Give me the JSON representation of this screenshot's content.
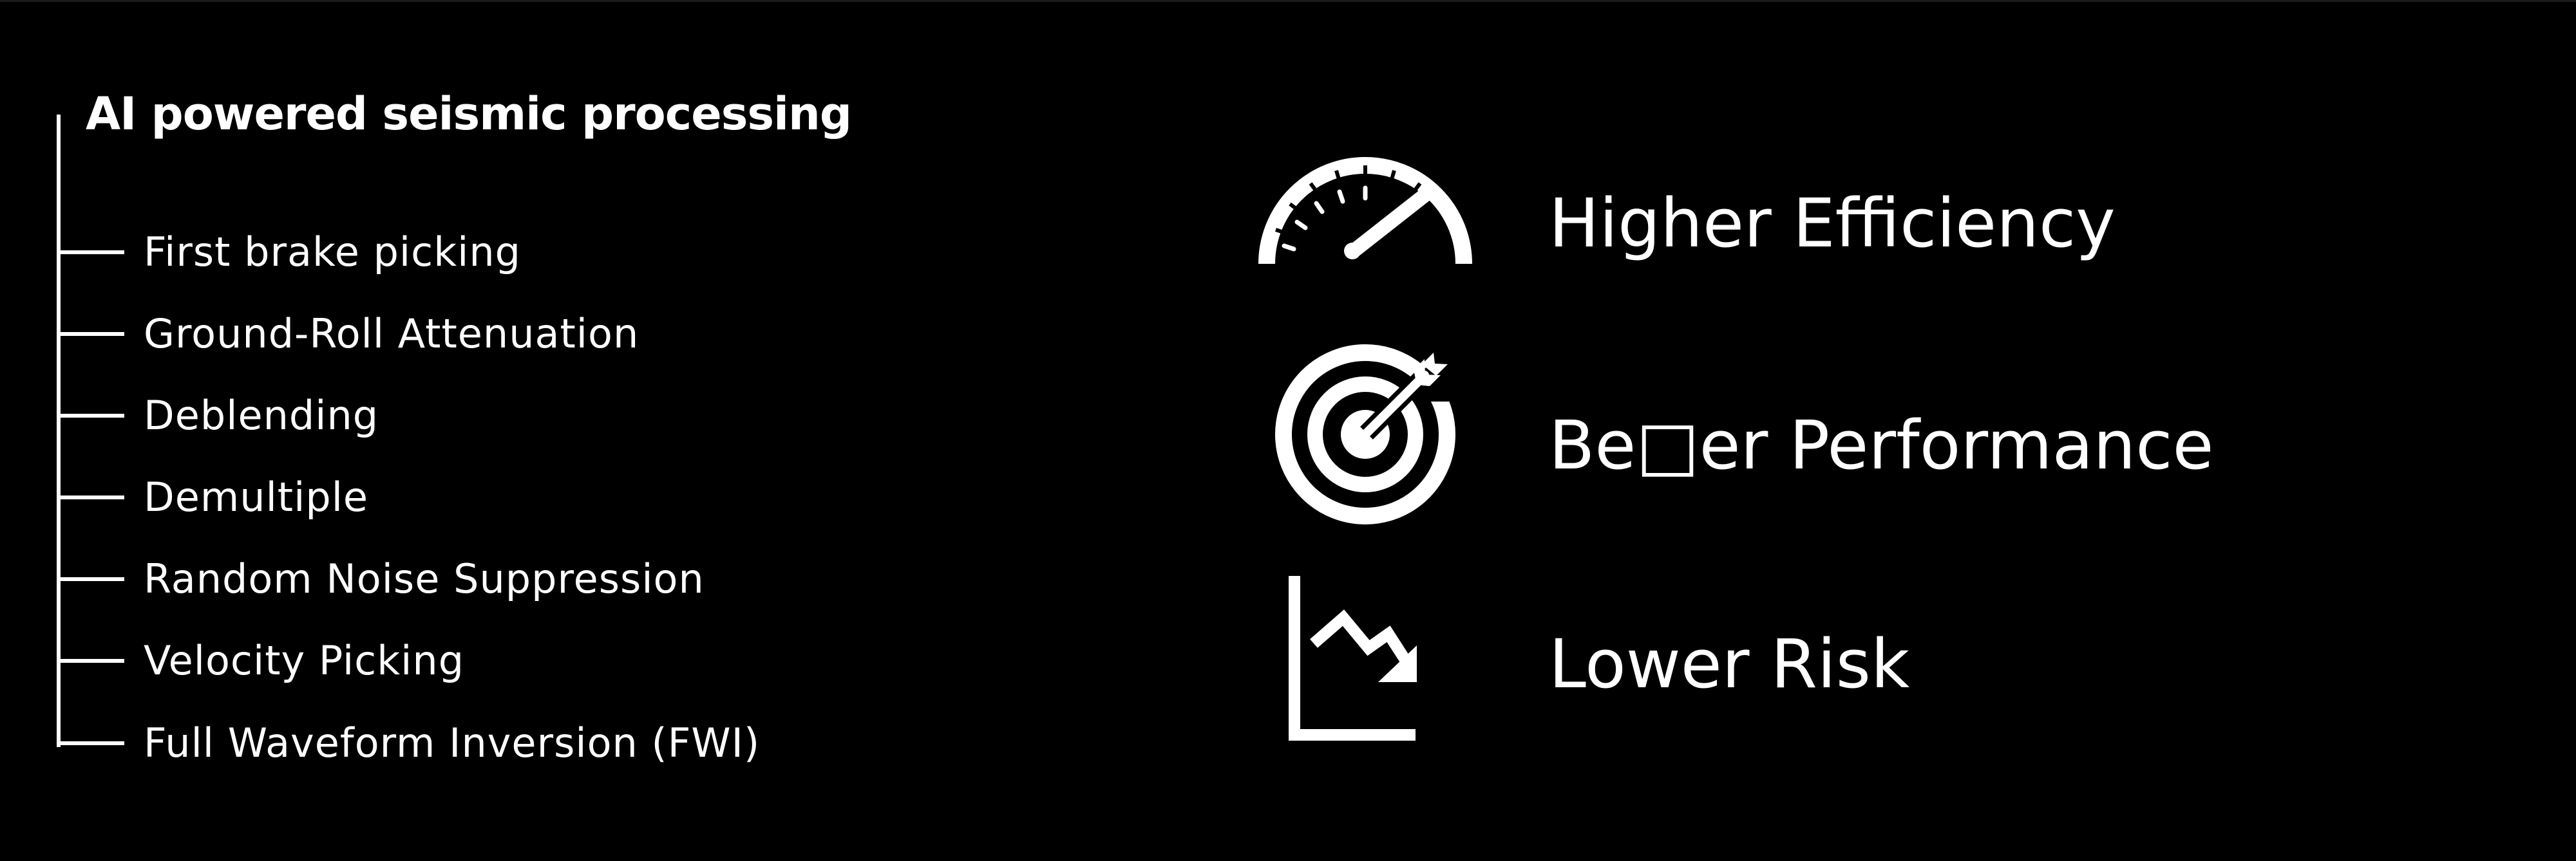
{
  "tree": {
    "heading": "AI powered seismic processing",
    "items": [
      {
        "label": "First brake picking"
      },
      {
        "label": "Ground-Roll Attenuation"
      },
      {
        "label": "Deblending"
      },
      {
        "label": "Demultiple"
      },
      {
        "label": "Random Noise Suppression"
      },
      {
        "label": "Velocity Picking"
      },
      {
        "label": "Full Waveform Inversion (FWI)"
      }
    ]
  },
  "benefits": [
    {
      "label": "Higher Efficiency",
      "icon": "speedometer-icon"
    },
    {
      "label": "Be□er Performance",
      "icon": "target-arrow-icon"
    },
    {
      "label": "Lower Risk",
      "icon": "downward-trend-chart-icon"
    }
  ],
  "colors": {
    "background": "#000000",
    "foreground": "#ffffff"
  }
}
